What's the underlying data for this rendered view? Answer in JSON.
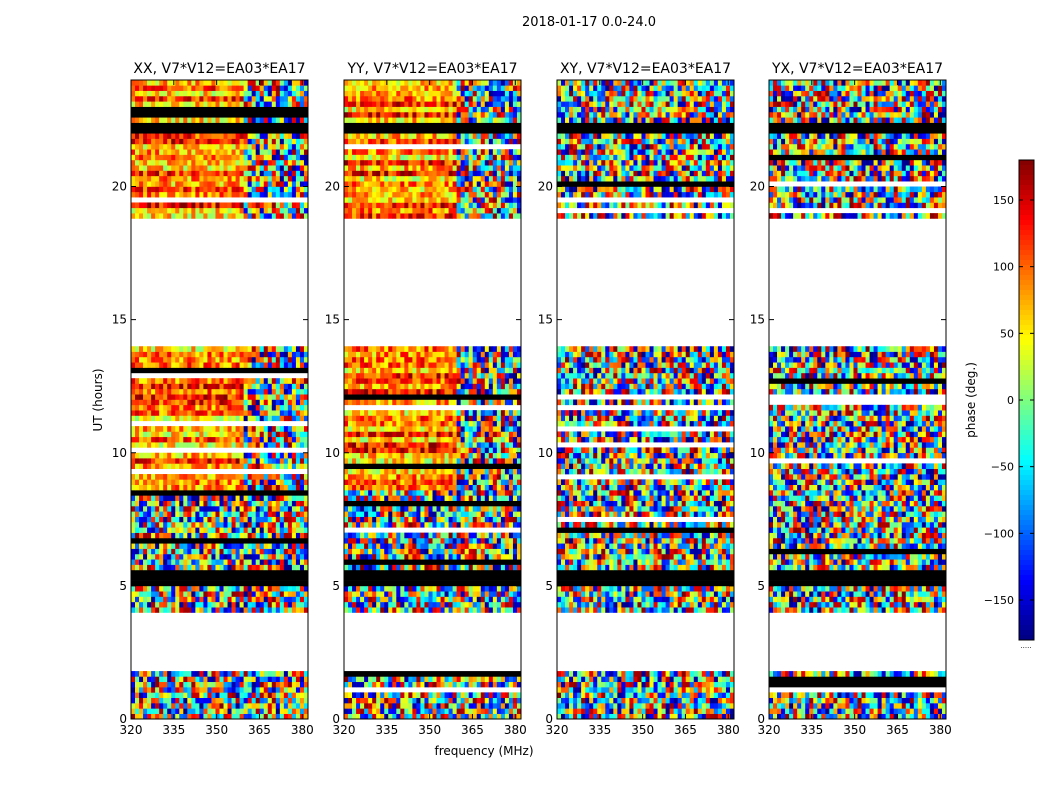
{
  "figure": {
    "suptitle": "2018-01-17 0.0-24.0",
    "xlabel": "frequency (MHz)",
    "ylabel": "UT (hours)",
    "colorbar_label": "phase (deg.)",
    "colorbar_footer": "....."
  },
  "colors": {
    "background": "#ffffff",
    "axes": "#000000",
    "flagged": "#000000",
    "colormap": "jet"
  },
  "chart_data": {
    "type": "heatmap",
    "x_ticks": [
      320,
      335,
      350,
      365,
      380
    ],
    "y_ticks": [
      0,
      5,
      10,
      15,
      20
    ],
    "xlim": [
      320,
      382
    ],
    "ylim": [
      0,
      24
    ],
    "colorbar": {
      "range": [
        -180,
        180
      ],
      "ticks": [
        150,
        100,
        50,
        0,
        -50,
        -100,
        -150
      ]
    },
    "empty_hours": [
      [
        1.8,
        4.0
      ],
      [
        14.0,
        18.8
      ]
    ],
    "flagged_hours": [
      [
        5.1,
        5.5
      ],
      [
        22.0,
        22.3
      ]
    ],
    "panels": [
      {
        "title": "XX, V7*V12=EA03*EA17",
        "coherent": true
      },
      {
        "title": "YY, V7*V12=EA03*EA17",
        "coherent": true
      },
      {
        "title": "XY, V7*V12=EA03*EA17",
        "coherent": false
      },
      {
        "title": "YX, V7*V12=EA03*EA17",
        "coherent": false
      }
    ]
  }
}
